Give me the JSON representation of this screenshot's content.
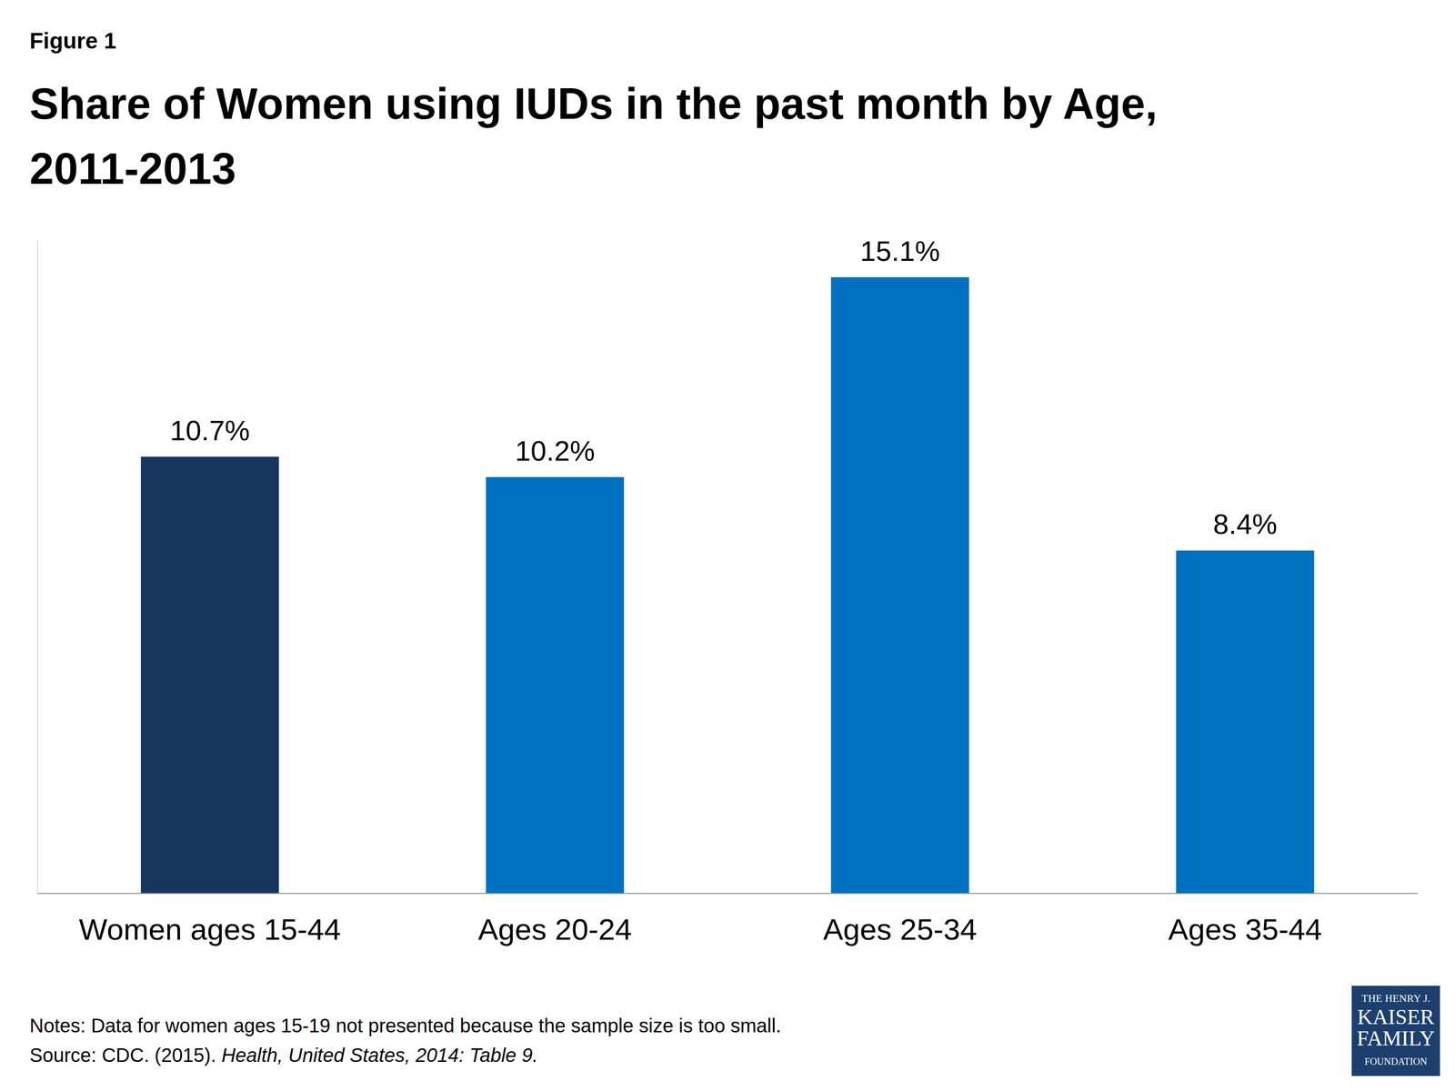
{
  "chart_data": {
    "type": "bar",
    "figure_label": "Figure 1",
    "title": "Share of Women using IUDs in the past month by Age, 2011-2013",
    "categories": [
      "Women ages 15-44",
      "Ages 20-24",
      "Ages 25-34",
      "Ages 35-44"
    ],
    "values": [
      10.7,
      10.2,
      15.1,
      8.4
    ],
    "value_labels": [
      "10.7%",
      "10.2%",
      "15.1%",
      "8.4%"
    ],
    "colors": [
      "#17365d",
      "#0070c0",
      "#0070c0",
      "#0070c0"
    ],
    "ylim": [
      0,
      16
    ],
    "yticks": [],
    "grid": false,
    "data_labels": true,
    "tick_labels": "x",
    "notes": "Notes: Data for women ages 15-19 not presented because the sample size is too small.",
    "source": [
      "Source: CDC. (2015). ",
      "Health, United States, 2014: Table 9."
    ],
    "logo": [
      "THE HENRY J.",
      "KAISER",
      "FAMILY",
      "FOUNDATION"
    ]
  }
}
